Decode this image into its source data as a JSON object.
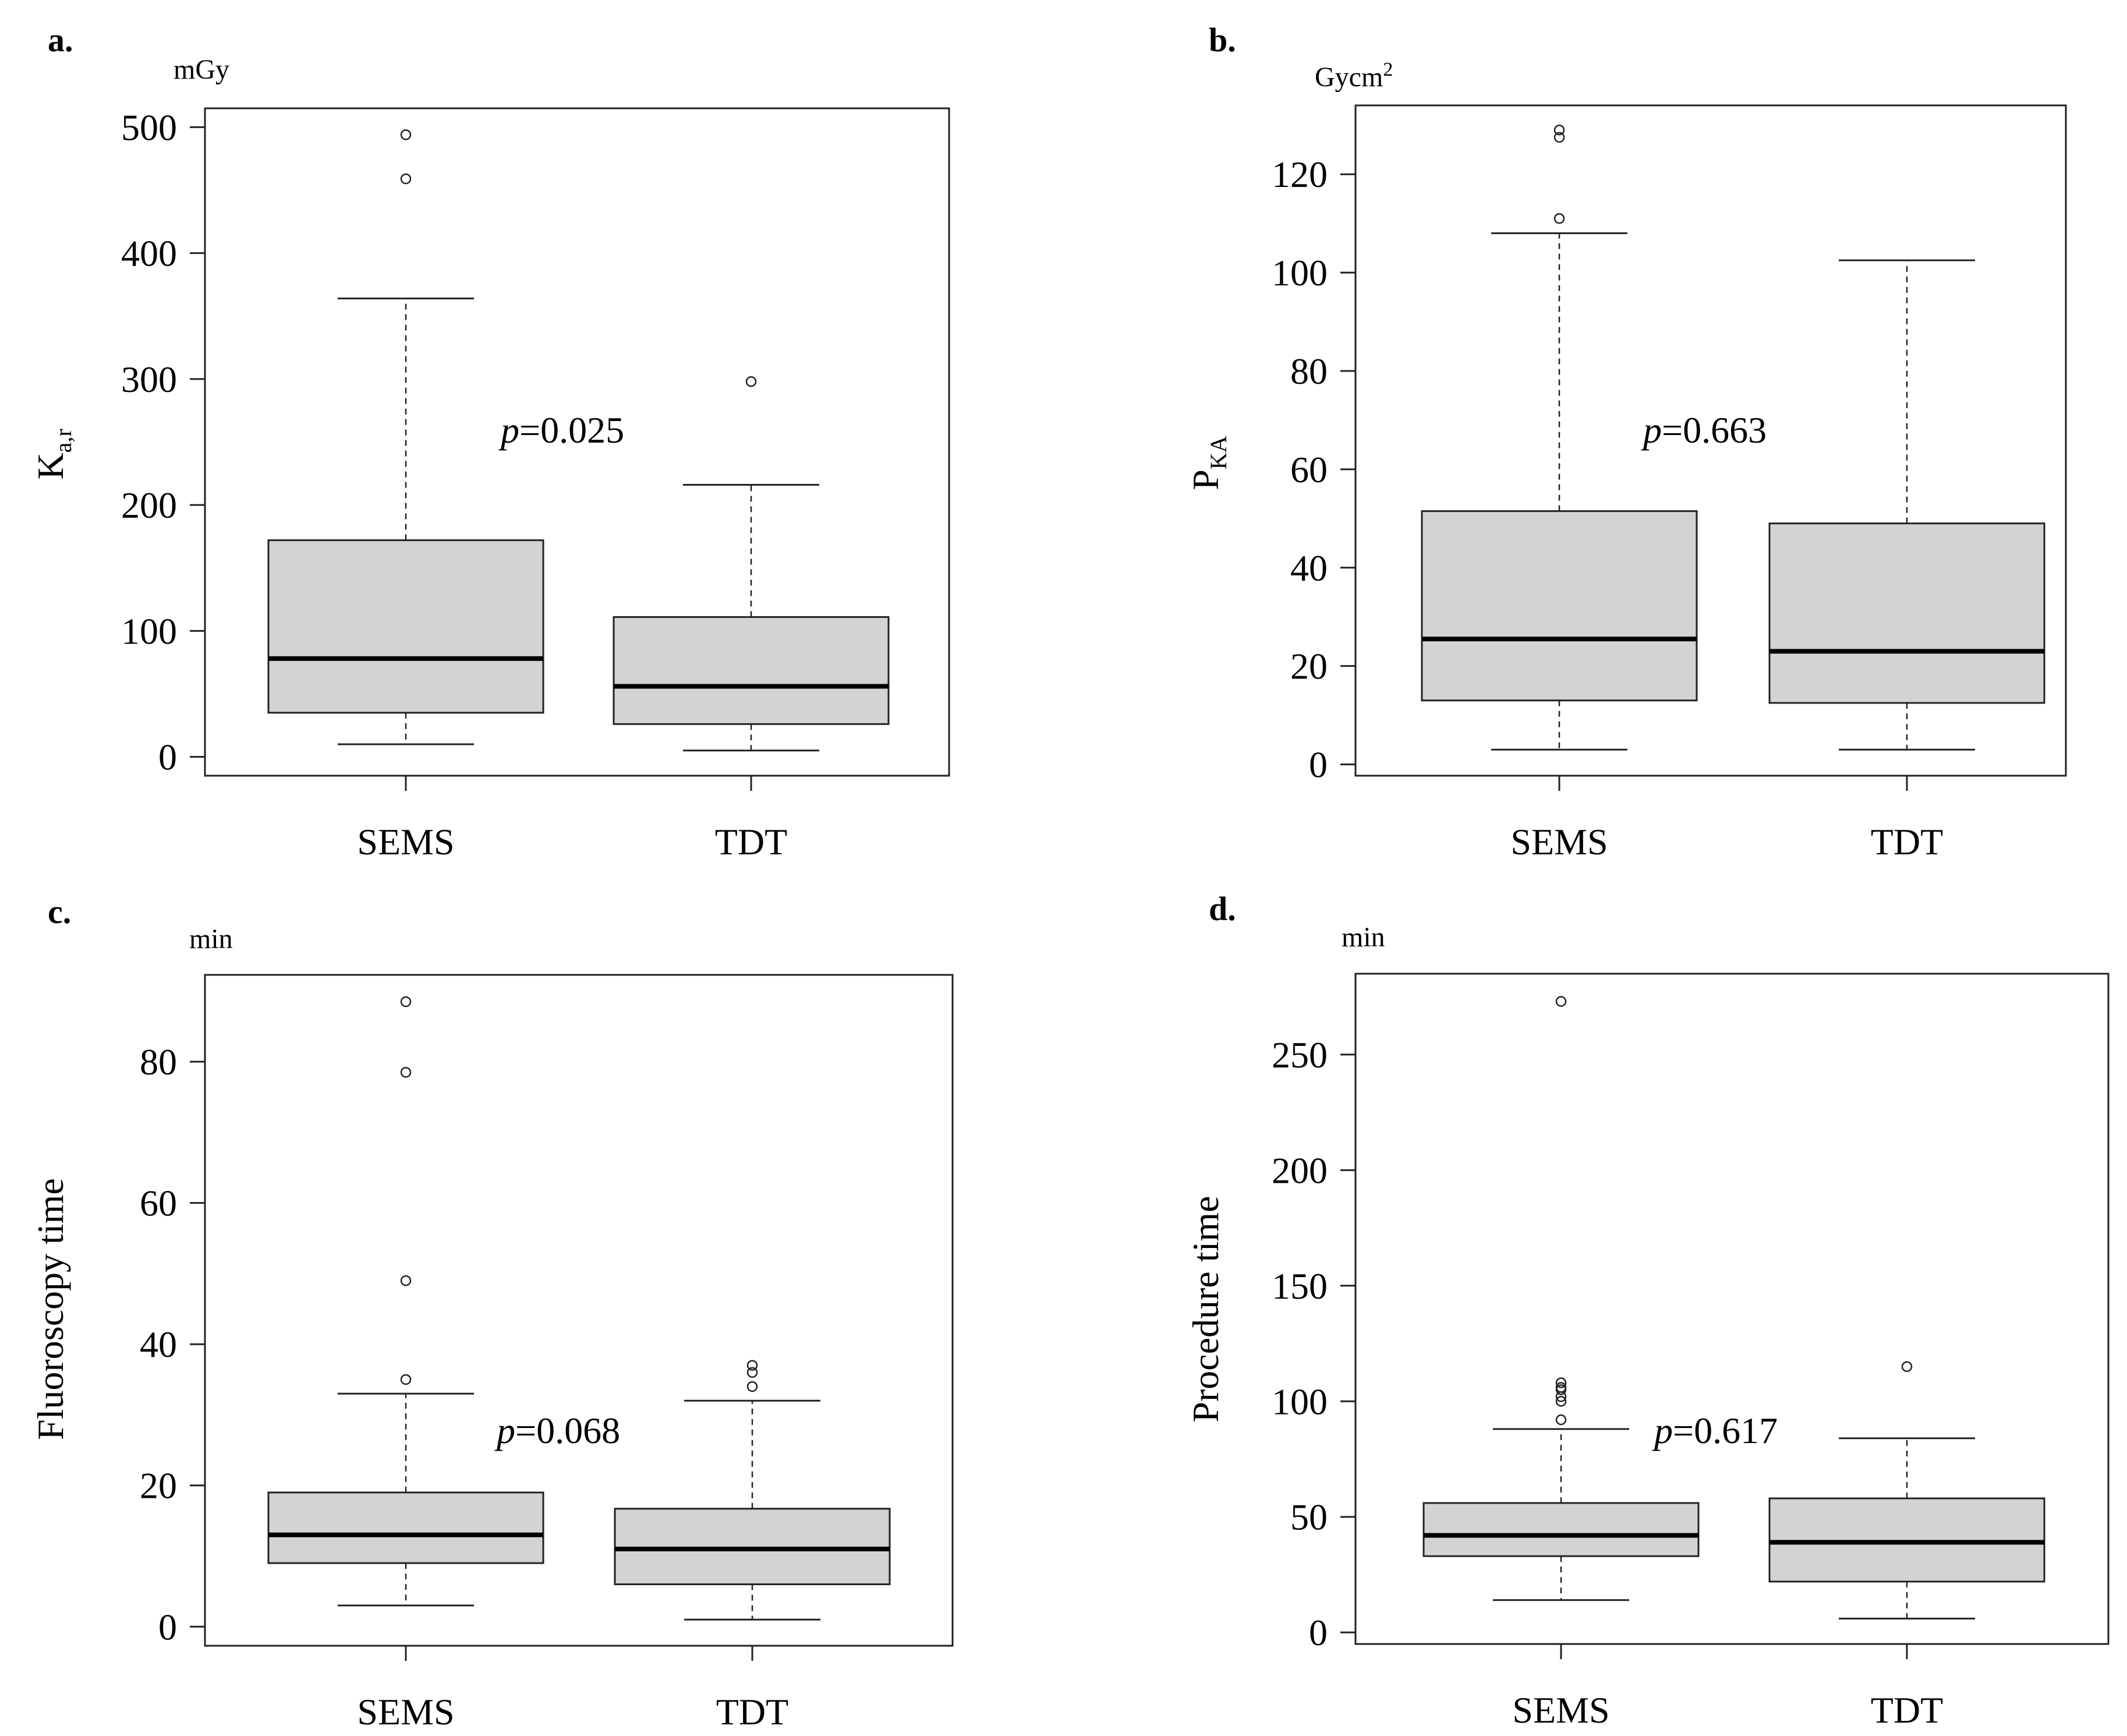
{
  "chart_data": [
    {
      "type": "box",
      "panel_label": "a.",
      "unit": "mGy",
      "ylabel": {
        "main": "K",
        "sub": "a,r"
      },
      "ylim": [
        -15,
        515
      ],
      "yticks": [
        0,
        100,
        200,
        300,
        400,
        500
      ],
      "categories": [
        "SEMS",
        "TDT"
      ],
      "boxes": [
        {
          "name": "SEMS",
          "whisker_low": 10,
          "q1": 35,
          "median": 78,
          "q3": 172,
          "whisker_high": 364,
          "outliers": [
            459,
            494
          ]
        },
        {
          "name": "TDT",
          "whisker_low": 5,
          "q1": 26,
          "median": 56,
          "q3": 111,
          "whisker_high": 216,
          "outliers": [
            298
          ]
        }
      ],
      "annotation": {
        "p": "p",
        "value": "=0.025"
      }
    },
    {
      "type": "box",
      "panel_label": "b.",
      "unit": "Gycm",
      "unit_sup": "2",
      "ylabel": {
        "main": "P",
        "sub": "KA"
      },
      "ylim": [
        -2.3,
        134
      ],
      "yticks": [
        0,
        20,
        40,
        60,
        80,
        100,
        120
      ],
      "categories": [
        "SEMS",
        "TDT"
      ],
      "boxes": [
        {
          "name": "SEMS",
          "whisker_low": 3,
          "q1": 13,
          "median": 25.5,
          "q3": 51.5,
          "whisker_high": 108,
          "outliers": [
            111,
            127.5,
            129
          ]
        },
        {
          "name": "TDT",
          "whisker_low": 3,
          "q1": 12.5,
          "median": 23,
          "q3": 49,
          "whisker_high": 102.5,
          "outliers": []
        }
      ],
      "annotation": {
        "p": "p",
        "value": "=0.663"
      }
    },
    {
      "type": "box",
      "panel_label": "c.",
      "unit": "min",
      "ylabel": {
        "main": "Fluoroscopy time",
        "sub": ""
      },
      "ylim": [
        -2.7,
        92.3
      ],
      "yticks": [
        0,
        20,
        40,
        60,
        80
      ],
      "categories": [
        "SEMS",
        "TDT"
      ],
      "boxes": [
        {
          "name": "SEMS",
          "whisker_low": 3,
          "q1": 9,
          "median": 13,
          "q3": 19,
          "whisker_high": 33,
          "outliers": [
            35,
            49,
            78.5,
            88.5
          ]
        },
        {
          "name": "TDT",
          "whisker_low": 1,
          "q1": 6,
          "median": 11,
          "q3": 16.7,
          "whisker_high": 32,
          "outliers": [
            34,
            36,
            37
          ]
        }
      ],
      "annotation": {
        "p": "p",
        "value": "=0.068"
      }
    },
    {
      "type": "box",
      "panel_label": "d.",
      "unit": "min",
      "ylabel": {
        "main": "Procedure time",
        "sub": ""
      },
      "ylim": [
        -5,
        285
      ],
      "yticks": [
        0,
        50,
        100,
        150,
        200,
        250
      ],
      "categories": [
        "SEMS",
        "TDT"
      ],
      "boxes": [
        {
          "name": "SEMS",
          "whisker_low": 14,
          "q1": 33,
          "median": 42,
          "q3": 56,
          "whisker_high": 88,
          "outliers": [
            92,
            100,
            102,
            105,
            106,
            108,
            273
          ]
        },
        {
          "name": "TDT",
          "whisker_low": 6,
          "q1": 22,
          "median": 39,
          "q3": 58,
          "whisker_high": 84,
          "outliers": [
            115
          ]
        }
      ],
      "annotation": {
        "p": "p",
        "value": "=0.617"
      }
    }
  ]
}
